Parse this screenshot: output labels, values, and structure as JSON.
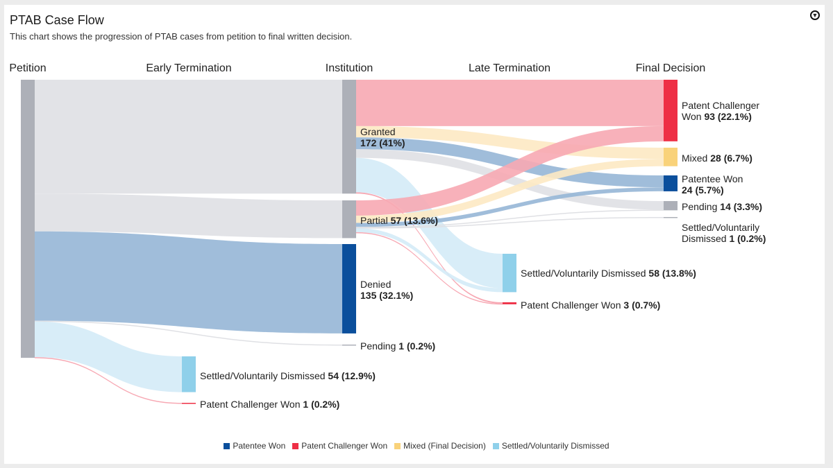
{
  "header": {
    "title": "PTAB Case Flow",
    "subtitle": "This chart shows the progression of PTAB cases from petition to final written decision.",
    "download_icon": "download-circle-icon"
  },
  "chart_data": {
    "type": "sankey",
    "columns": [
      "Petition",
      "Early Termination",
      "Institution",
      "Late Termination",
      "Final Decision"
    ],
    "nodes": {
      "petition": {
        "name": "Petition",
        "column": 0,
        "value": 420,
        "label": "",
        "value_label": "",
        "color": "#adb0b8"
      },
      "et_settled": {
        "name": "Settled/Voluntarily Dismissed",
        "column": 1,
        "value": 54,
        "value_label": "54 (12.9%)",
        "color": "#8fd0ea"
      },
      "et_pcw": {
        "name": "Patent Challenger Won",
        "column": 1,
        "value": 1,
        "value_label": "1 (0.2%)",
        "color": "#ee2f45"
      },
      "granted": {
        "name": "Granted",
        "column": 2,
        "value": 172,
        "value_label": "172 (41%)",
        "color": "#adb0b8"
      },
      "partial": {
        "name": "Partial",
        "column": 2,
        "value": 57,
        "value_label": "57 (13.6%)",
        "color": "#adb0b8"
      },
      "denied": {
        "name": "Denied",
        "column": 2,
        "value": 135,
        "value_label": "135 (32.1%)",
        "color": "#0b4f9c"
      },
      "inst_pending": {
        "name": "Pending",
        "column": 2,
        "value": 1,
        "value_label": "1 (0.2%)",
        "color": "#adb0b8"
      },
      "lt_settled": {
        "name": "Settled/Voluntarily Dismissed",
        "column": 3,
        "value": 58,
        "value_label": "58 (13.8%)",
        "color": "#8fd0ea"
      },
      "lt_pcw": {
        "name": "Patent Challenger Won",
        "column": 3,
        "value": 3,
        "value_label": "3 (0.7%)",
        "color": "#ee2f45"
      },
      "fd_pcw": {
        "name": "Patent Challenger Won",
        "column": 4,
        "value": 93,
        "value_label": "93 (22.1%)",
        "color": "#ee2f45"
      },
      "fd_mixed": {
        "name": "Mixed",
        "column": 4,
        "value": 28,
        "value_label": "28 (6.7%)",
        "color": "#f9d27a"
      },
      "fd_pw": {
        "name": "Patentee Won",
        "column": 4,
        "value": 24,
        "value_label": "24 (5.7%)",
        "color": "#0b4f9c"
      },
      "fd_pending": {
        "name": "Pending",
        "column": 4,
        "value": 14,
        "value_label": "14 (3.3%)",
        "color": "#adb0b8"
      },
      "fd_settled": {
        "name": "Settled/Voluntarily Dismissed",
        "column": 4,
        "value": 1,
        "value_label": "1 (0.2%)",
        "color": "#adb0b8"
      }
    },
    "links": [
      {
        "source": "petition",
        "target": "granted",
        "value": 172,
        "color": "#dfe0e4"
      },
      {
        "source": "petition",
        "target": "partial",
        "value": 57,
        "color": "#dfe0e4"
      },
      {
        "source": "petition",
        "target": "denied",
        "value": 135,
        "color": "#96b6d6"
      },
      {
        "source": "petition",
        "target": "inst_pending",
        "value": 1,
        "color": "#dfe0e4"
      },
      {
        "source": "petition",
        "target": "et_settled",
        "value": 54,
        "color": "#d4ebf7"
      },
      {
        "source": "petition",
        "target": "et_pcw",
        "value": 1,
        "color": "#f7a8b3"
      },
      {
        "source": "granted",
        "target": "fd_pcw",
        "value": 70,
        "color": "#f7a8b3"
      },
      {
        "source": "granted",
        "target": "fd_mixed",
        "value": 17,
        "color": "#fde9c3"
      },
      {
        "source": "granted",
        "target": "fd_pw",
        "value": 18,
        "color": "#96b6d6"
      },
      {
        "source": "granted",
        "target": "fd_pending",
        "value": 13,
        "color": "#dfe0e4"
      },
      {
        "source": "granted",
        "target": "lt_settled",
        "value": 52,
        "color": "#d4ebf7"
      },
      {
        "source": "granted",
        "target": "lt_pcw",
        "value": 2,
        "color": "#f7a8b3"
      },
      {
        "source": "partial",
        "target": "fd_pcw",
        "value": 23,
        "color": "#f7a8b3"
      },
      {
        "source": "partial",
        "target": "fd_mixed",
        "value": 11,
        "color": "#fde9c3"
      },
      {
        "source": "partial",
        "target": "fd_pw",
        "value": 6,
        "color": "#96b6d6"
      },
      {
        "source": "partial",
        "target": "fd_pending",
        "value": 1,
        "color": "#dfe0e4"
      },
      {
        "source": "partial",
        "target": "fd_settled",
        "value": 1,
        "color": "#dfe0e4"
      },
      {
        "source": "partial",
        "target": "lt_settled",
        "value": 6,
        "color": "#d4ebf7"
      },
      {
        "source": "partial",
        "target": "lt_pcw",
        "value": 1,
        "color": "#f7a8b3"
      }
    ],
    "legend": [
      {
        "label": "Patentee Won",
        "color": "#0b4f9c"
      },
      {
        "label": "Patent Challenger Won",
        "color": "#ee2f45"
      },
      {
        "label": "Mixed (Final Decision)",
        "color": "#f9d27a"
      },
      {
        "label": "Settled/Voluntarily Dismissed",
        "color": "#8fd0ea"
      }
    ]
  }
}
